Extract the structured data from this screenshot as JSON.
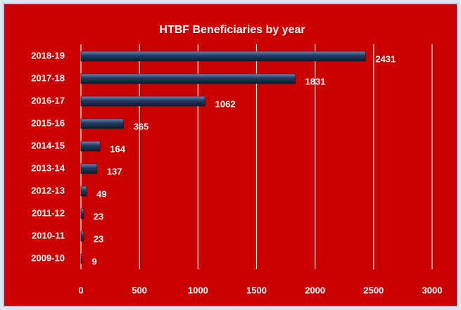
{
  "chart_data": {
    "type": "bar",
    "orientation": "horizontal",
    "title": "HTBF Beneficiaries by year",
    "categories": [
      "2018-19",
      "2017-18",
      "2016-17",
      "2015-16",
      "2014-15",
      "2013-14",
      "2012-13",
      "2011-12",
      "2010-11",
      "2009-10"
    ],
    "values": [
      2431,
      1831,
      1062,
      365,
      164,
      137,
      49,
      23,
      23,
      9
    ],
    "color": "#1f3a5f",
    "xlim": [
      0,
      3000
    ],
    "xticks": [
      0,
      500,
      1000,
      1500,
      2000,
      2500,
      3000
    ],
    "grid": true
  }
}
